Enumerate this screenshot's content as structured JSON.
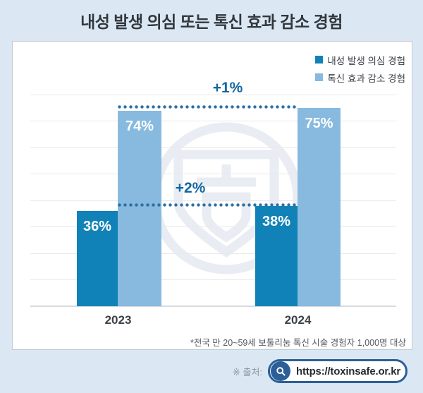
{
  "title": "내성 발생 의심 또는 톡신 효과 감소 경험",
  "legend": [
    {
      "label": "내성 발생 의심 경험",
      "color": "#1182b7"
    },
    {
      "label": "톡신 효과 감소 경험",
      "color": "#87bade"
    }
  ],
  "chart_data": {
    "type": "bar",
    "categories": [
      "2023",
      "2024"
    ],
    "series": [
      {
        "name": "내성 발생 의심 경험",
        "values": [
          36,
          38
        ],
        "labels": [
          "36%",
          "38%"
        ],
        "color": "#1182b7"
      },
      {
        "name": "톡신 효과 감소 경험",
        "values": [
          74,
          75
        ],
        "labels": [
          "74%",
          "75%"
        ],
        "color": "#87bade"
      }
    ],
    "annotations": [
      {
        "text": "+1%",
        "series": "톡신 효과 감소 경험"
      },
      {
        "text": "+2%",
        "series": "내성 발생 의심 경험"
      }
    ],
    "ylim": [
      0,
      80
    ],
    "gridline_step": 10,
    "grid": true,
    "legend_position": "top-right"
  },
  "footnote": "*전국 만 20~59세 보툴리눔 톡신 시술 경험자 1,000명 대상",
  "source": {
    "label": "※ 출처:",
    "url": "https://toxinsafe.or.kr"
  },
  "colors": {
    "background": "#dbe8f4",
    "panel": "#ffffff",
    "dark_bar": "#1182b7",
    "light_bar": "#87bade",
    "annotation": "#15669f",
    "title": "#32373d",
    "pill_border": "#2b5f97"
  }
}
